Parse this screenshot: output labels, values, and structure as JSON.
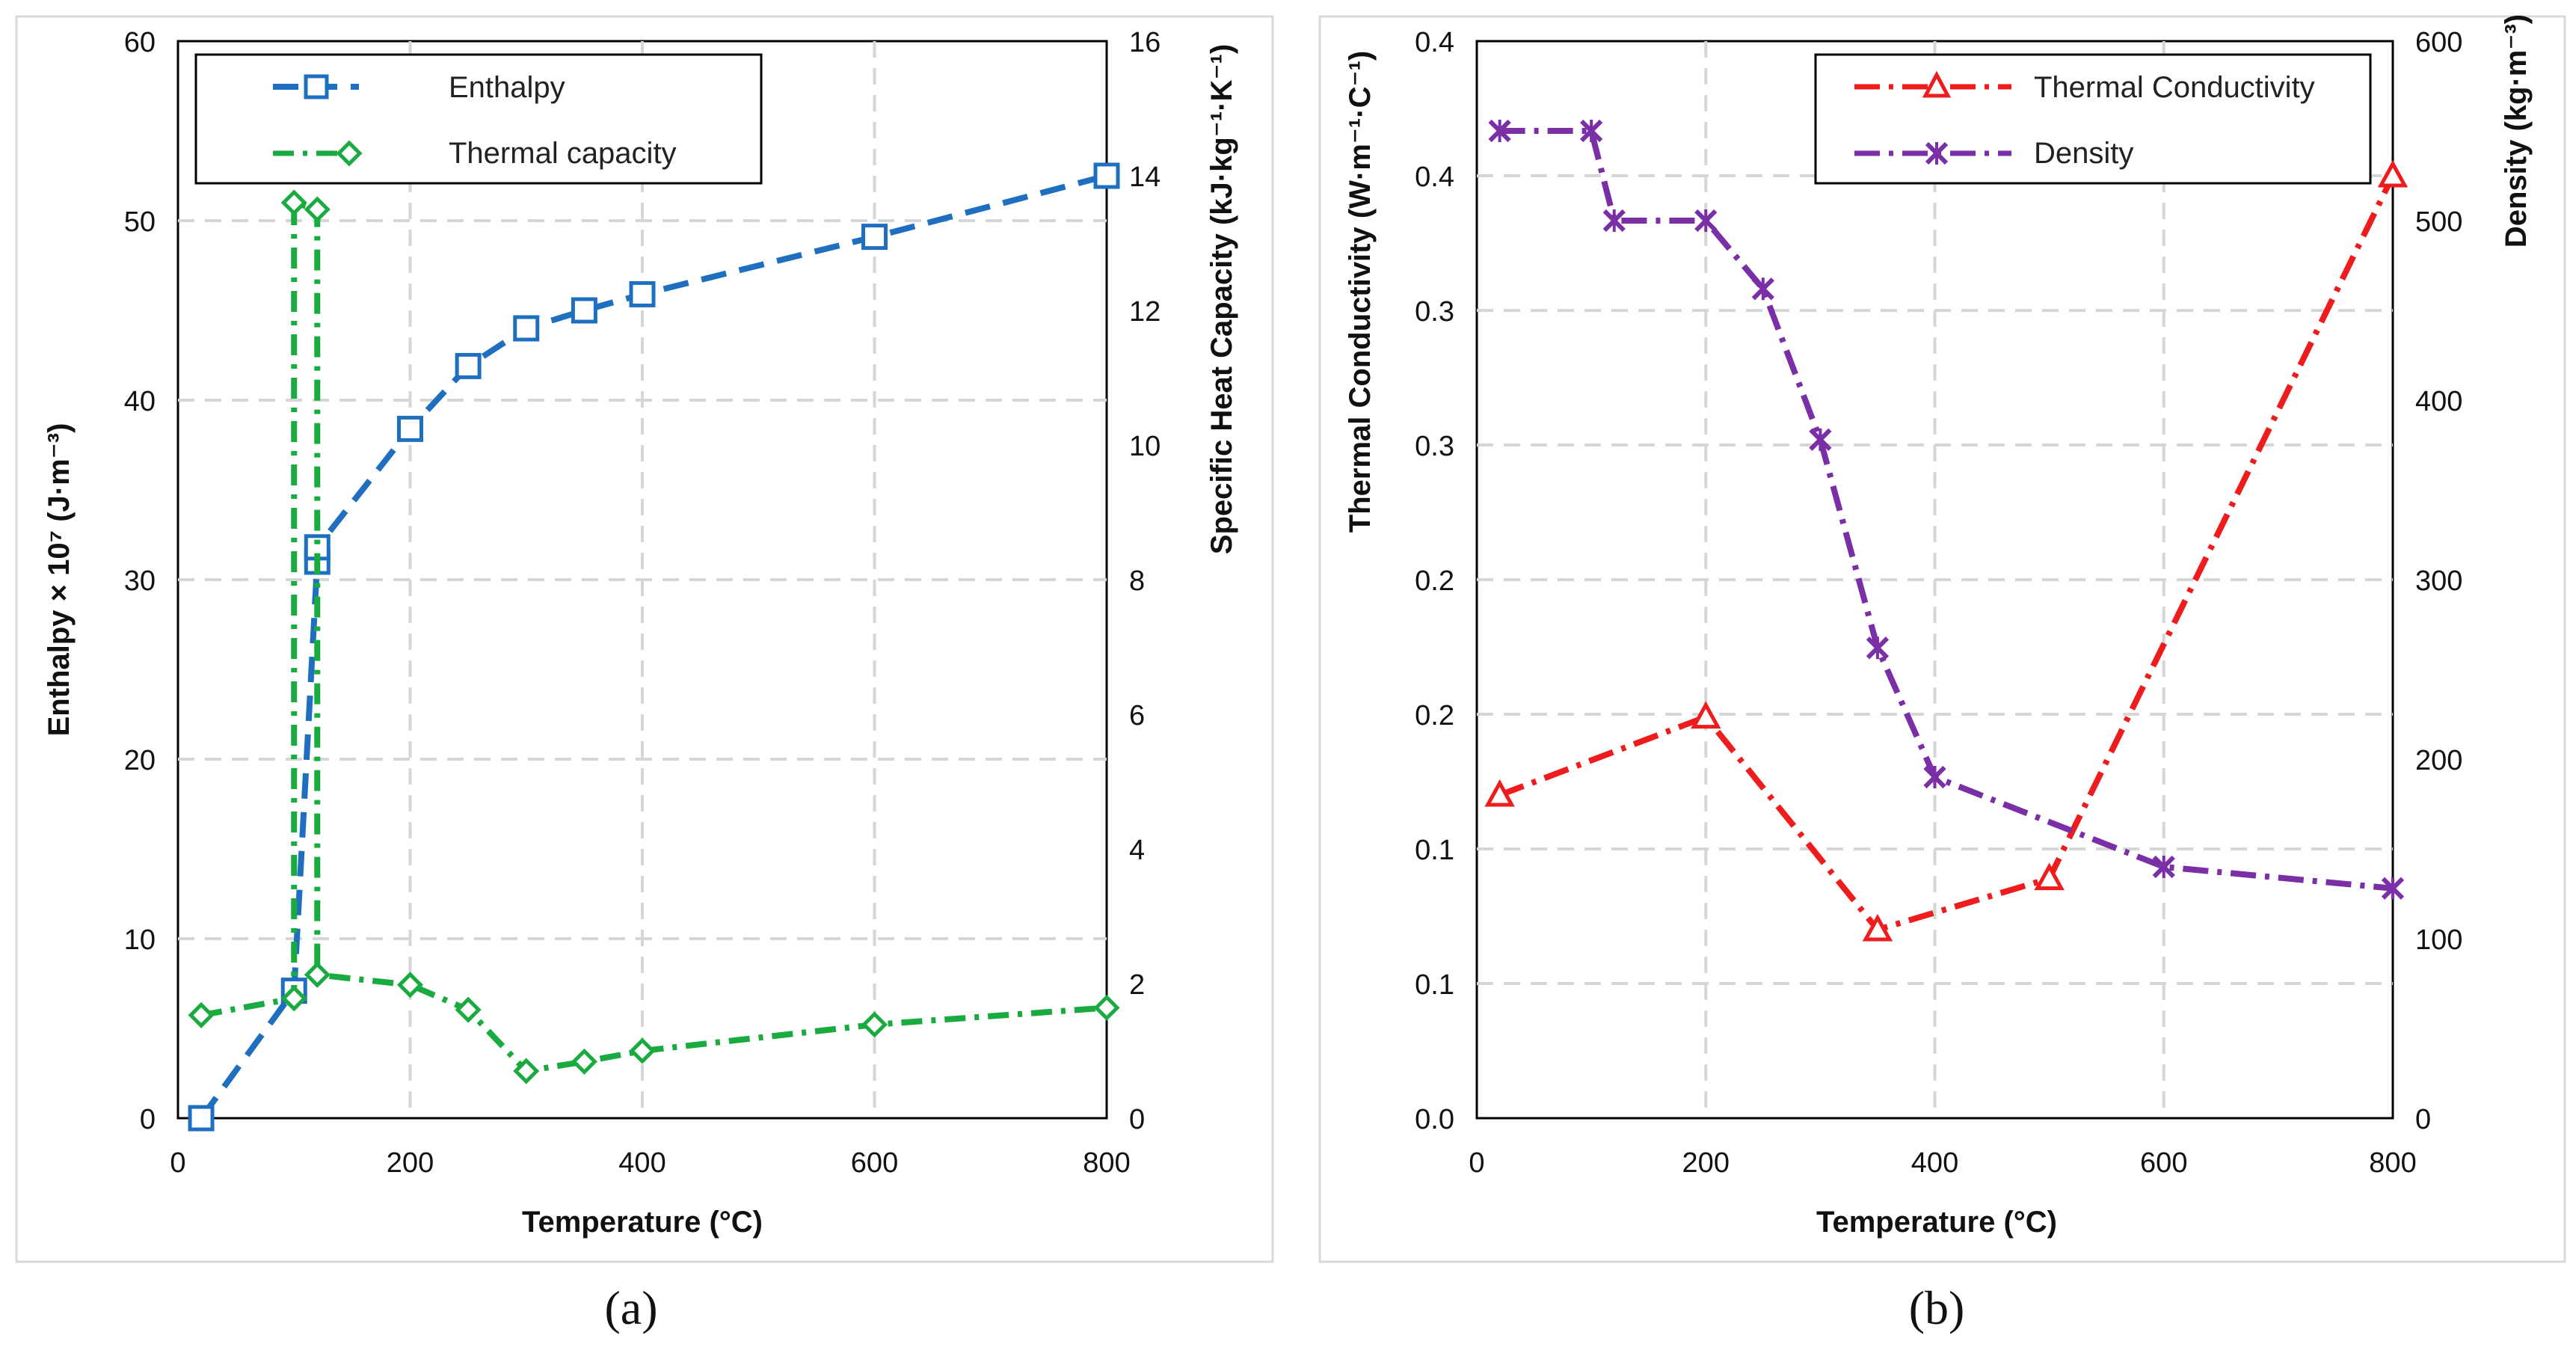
{
  "chart_data": [
    {
      "type": "line",
      "panel_label": "(a)",
      "xlabel": "Temperature (°C)",
      "ylabel_left": "Enthalpy × 10⁷ (J·m⁻³)",
      "ylabel_right": "Specific Heat Capacity (kJ·kg⁻¹·K⁻¹)",
      "xlim": [
        0,
        800
      ],
      "ylim_left": [
        0,
        60
      ],
      "ylim_right": [
        0,
        16
      ],
      "x_ticks": [
        0,
        200,
        400,
        600,
        800
      ],
      "y_left_ticks": [
        0,
        10,
        20,
        30,
        40,
        50,
        60
      ],
      "y_right_ticks": [
        0,
        2,
        4,
        6,
        8,
        10,
        12,
        14,
        16
      ],
      "grid": true,
      "legend_position": "top-left",
      "series": [
        {
          "name": "Enthalpy",
          "axis": "left",
          "color": "#1f6fc0",
          "marker": "square",
          "x": [
            20,
            100,
            120,
            120,
            200,
            250,
            300,
            350,
            400,
            600,
            800
          ],
          "y": [
            0,
            7.1,
            31.0,
            31.8,
            38.4,
            41.9,
            44.0,
            45.0,
            45.9,
            49.1,
            52.5
          ]
        },
        {
          "name": "Thermal capacity",
          "axis": "right",
          "color": "#1aab40",
          "marker": "diamond",
          "x": [
            20,
            100,
            100,
            120,
            120,
            200,
            250,
            300,
            350,
            400,
            600,
            800
          ],
          "y": [
            1.53,
            1.78,
            13.6,
            13.5,
            2.13,
            1.98,
            1.61,
            0.7,
            0.84,
            1.0,
            1.39,
            1.64
          ]
        }
      ]
    },
    {
      "type": "line",
      "panel_label": "(b)",
      "xlabel": "Temperature (°C)",
      "ylabel_left": "Thermal Conductivity (W·m⁻¹·C⁻¹)",
      "ylabel_right": "Density (kg·m⁻³)",
      "xlim": [
        0,
        800
      ],
      "ylim_left": [
        0,
        0.4
      ],
      "ylim_right": [
        0,
        600
      ],
      "x_ticks": [
        0,
        200,
        400,
        600,
        800
      ],
      "y_left_tick_labels": [
        "0.0",
        "0.1",
        "0.1",
        "0.2",
        "0.2",
        "0.3",
        "0.3",
        "0.4",
        "0.4"
      ],
      "y_right_ticks": [
        0,
        100,
        200,
        300,
        400,
        500,
        600
      ],
      "grid": true,
      "legend_position": "top-right",
      "series": [
        {
          "name": "Thermal Conductivity",
          "axis": "left",
          "color": "#ee1c1c",
          "marker": "triangle",
          "x": [
            20,
            200,
            350,
            500,
            800
          ],
          "y": [
            0.12,
            0.149,
            0.07,
            0.089,
            0.35
          ]
        },
        {
          "name": "Density",
          "axis": "right",
          "color": "#7b2fa6",
          "marker": "x",
          "x": [
            20,
            100,
            120,
            200,
            250,
            300,
            350,
            400,
            600,
            800
          ],
          "y": [
            550,
            550,
            500,
            500,
            462,
            378,
            262,
            190,
            140,
            128
          ]
        }
      ]
    }
  ]
}
